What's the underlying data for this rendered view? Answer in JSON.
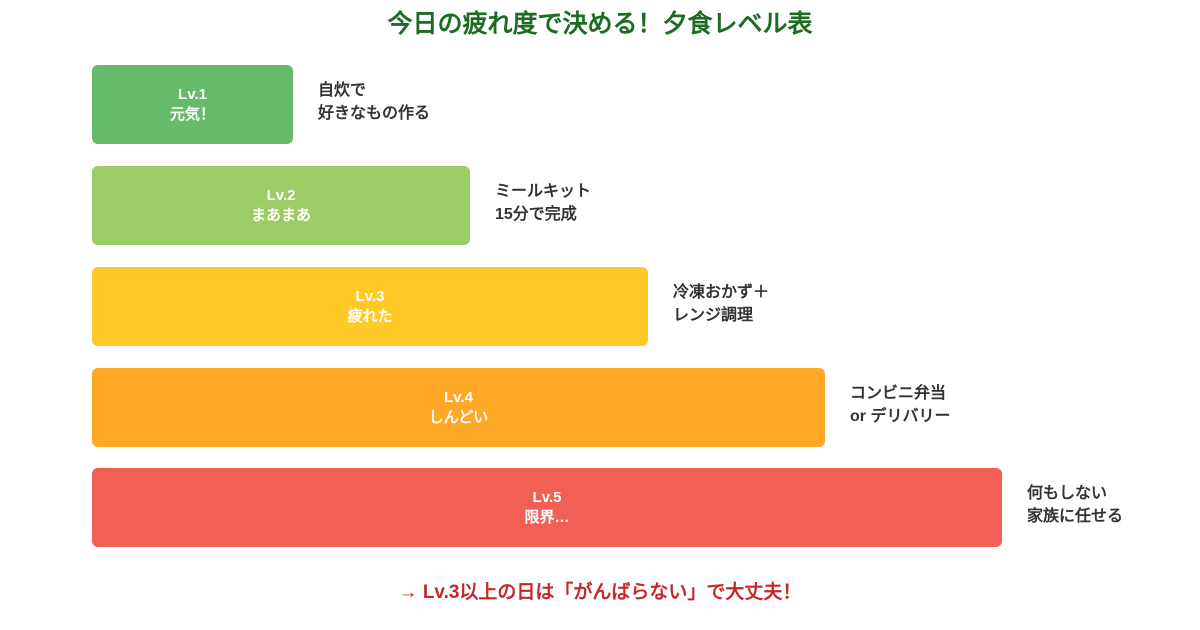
{
  "title": "今日の疲れ度で決める！夕食レベル表",
  "levels": [
    {
      "level": "Lv.1",
      "state": "元気！",
      "desc1": "自炊で",
      "desc2": "好きなもの作る",
      "color": "#66bb6a"
    },
    {
      "level": "Lv.2",
      "state": "まあまあ",
      "desc1": "ミールキット",
      "desc2": "15分で完成",
      "color": "#9ccc65"
    },
    {
      "level": "Lv.3",
      "state": "疲れた",
      "desc1": "冷凍おかず＋",
      "desc2": "レンジ調理",
      "color": "#ffca28"
    },
    {
      "level": "Lv.4",
      "state": "しんどい",
      "desc1": "コンビニ弁当",
      "desc2": "or デリバリー",
      "color": "#ffa726"
    },
    {
      "level": "Lv.5",
      "state": "限界…",
      "desc1": "何もしない",
      "desc2": "家族に任せる",
      "color": "#f25f55"
    }
  ],
  "footer": "→ Lv.3以上の日は「がんばらない」で大丈夫！"
}
